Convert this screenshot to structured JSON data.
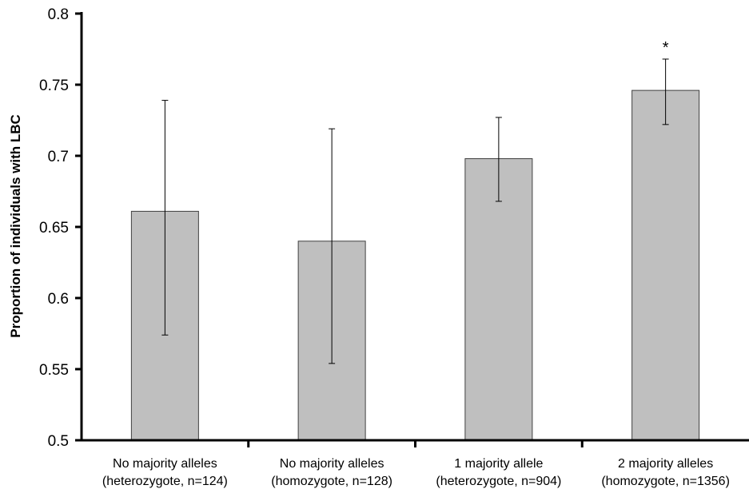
{
  "chart_data": {
    "type": "bar",
    "title": "",
    "xlabel": "",
    "ylabel": "Proportion of individuals with LBC",
    "ylim": [
      0.5,
      0.8
    ],
    "yticks": [
      "0.5",
      "0.55",
      "0.6",
      "0.65",
      "0.7",
      "0.75",
      "0.8"
    ],
    "grid": false,
    "categories": [
      [
        "No majority alleles",
        "(heterozygote, n=124)"
      ],
      [
        "No majority alleles",
        "(homozygote, n=128)"
      ],
      [
        "1 majority allele",
        "(heterozygote, n=904)"
      ],
      [
        "2 majority alleles",
        "(homozygote, n=1356)"
      ]
    ],
    "values": [
      0.661,
      0.64,
      0.698,
      0.746
    ],
    "error_low": [
      0.574,
      0.554,
      0.668,
      0.722
    ],
    "error_high": [
      0.739,
      0.719,
      0.727,
      0.768
    ],
    "annotations": [
      "",
      "",
      "",
      "*"
    ],
    "bar_color": "#bfbfbf",
    "bar_edge_color": "#404040"
  }
}
